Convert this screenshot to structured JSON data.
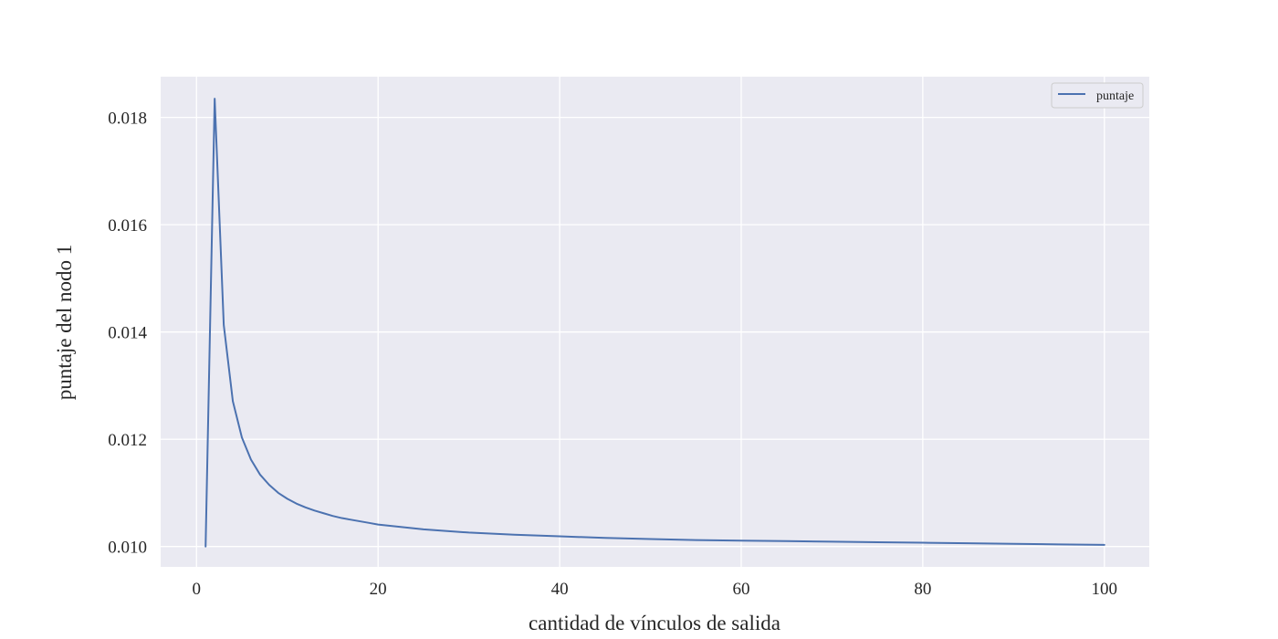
{
  "chart_data": {
    "type": "line",
    "xlabel": "cantidad de vínculos de salida",
    "ylabel": "puntaje del nodo 1",
    "xlim": [
      -3.95,
      104.95
    ],
    "ylim": [
      0.00962,
      0.01876
    ],
    "x_ticks": [
      0,
      20,
      40,
      60,
      80,
      100
    ],
    "x_tick_labels": [
      "0",
      "20",
      "40",
      "60",
      "80",
      "100"
    ],
    "y_ticks": [
      0.01,
      0.012,
      0.014,
      0.016,
      0.018
    ],
    "y_tick_labels": [
      "0.010",
      "0.012",
      "0.014",
      "0.016",
      "0.018"
    ],
    "grid": true,
    "legend_position": "top-right",
    "series": [
      {
        "name": "puntaje",
        "color": "#4c72b0",
        "x": [
          1,
          2,
          3,
          4,
          5,
          6,
          7,
          8,
          9,
          10,
          11,
          12,
          13,
          14,
          15,
          16,
          17,
          18,
          19,
          20,
          25,
          30,
          35,
          40,
          45,
          50,
          55,
          60,
          65,
          70,
          75,
          80,
          85,
          90,
          95,
          100
        ],
        "y": [
          0.01,
          0.01835,
          0.01413,
          0.01271,
          0.01203,
          0.01162,
          0.01134,
          0.01115,
          0.011,
          0.01089,
          0.0108,
          0.01073,
          0.01067,
          0.01062,
          0.01057,
          0.01053,
          0.0105,
          0.01047,
          0.01044,
          0.01041,
          0.01032,
          0.01026,
          0.01022,
          0.01019,
          0.01016,
          0.01014,
          0.01012,
          0.01011,
          0.0101,
          0.01009,
          0.01008,
          0.01007,
          0.01006,
          0.01005,
          0.01004,
          0.01003
        ]
      }
    ]
  }
}
